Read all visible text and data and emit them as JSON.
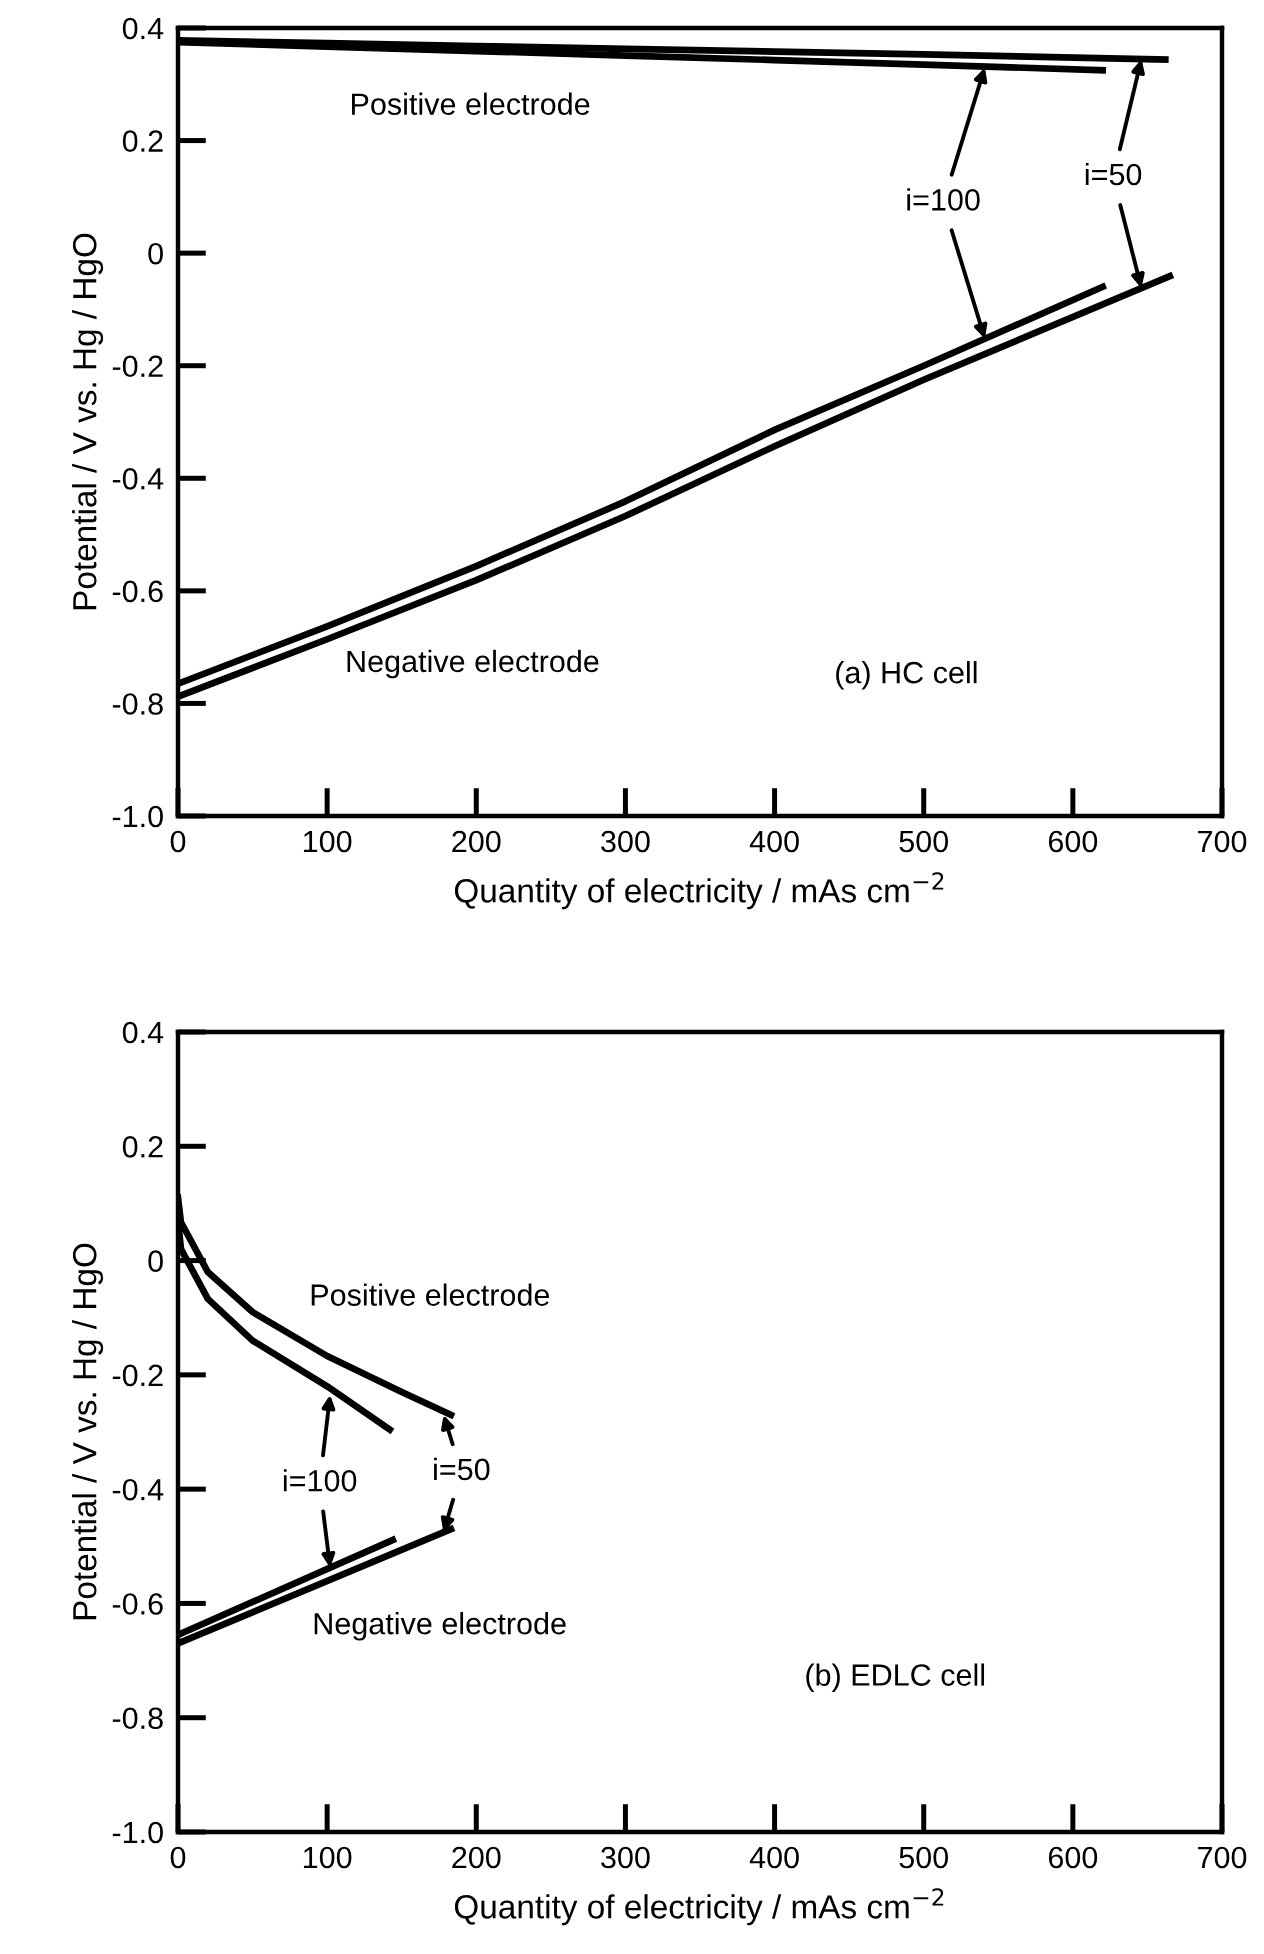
{
  "chart_data": [
    {
      "type": "line",
      "xlabel": "Quantity of electricity / mAs cm$^{−2}$",
      "ylabel": "Potential / V vs. Hg / HgO",
      "xlim": [
        0,
        700
      ],
      "xticks": [
        0,
        100,
        200,
        300,
        400,
        500,
        600,
        700
      ],
      "ylim": [
        -1.0,
        0.4
      ],
      "yticks": [
        {
          "value": -1.0,
          "label": "-1.0"
        },
        {
          "value": -0.8,
          "label": "-0.8"
        },
        {
          "value": -0.6,
          "label": "-0.6"
        },
        {
          "value": -0.4,
          "label": "-0.4"
        },
        {
          "value": -0.2,
          "label": "-0.2"
        },
        0,
        0.2,
        0.4
      ],
      "grid": false,
      "legend": false,
      "marker": "none",
      "line_style": "solid",
      "annotations": [
        "Positive electrode",
        "Negative electrode",
        "(a) HC cell",
        {
          "text": "i=100",
          "x": 541,
          "y": 0.33
        },
        {
          "text": "i=50",
          "x": 646,
          "y": 0.345
        }
      ],
      "series": [
        {
          "color": "#000000",
          "x": [
            0,
            100,
            200,
            300,
            400,
            500,
            620
          ],
          "values": [
            0.375,
            0.367,
            0.359,
            0.351,
            0.343,
            0.335,
            0.325
          ]
        },
        {
          "color": "#000000",
          "x": [
            0,
            100,
            200,
            300,
            400,
            500,
            662
          ],
          "values": [
            0.378,
            0.373,
            0.368,
            0.363,
            0.358,
            0.353,
            0.344
          ]
        },
        {
          "color": "#000000",
          "x": [
            0,
            100,
            200,
            300,
            400,
            500,
            620
          ],
          "values": [
            -0.765,
            -0.663,
            -0.556,
            -0.441,
            -0.314,
            -0.2,
            -0.06
          ]
        },
        {
          "color": "#000000",
          "x": [
            0,
            100,
            200,
            300,
            400,
            500,
            665
          ],
          "values": [
            -0.788,
            -0.686,
            -0.581,
            -0.467,
            -0.343,
            -0.225,
            -0.041
          ]
        }
      ]
    },
    {
      "type": "line",
      "xlabel": "Quantity of electricity / mAs cm$^{−2}$",
      "ylabel": "Potential / V vs. Hg / HgO",
      "xlim": [
        0,
        700
      ],
      "xticks": [
        0,
        100,
        200,
        300,
        400,
        500,
        600,
        700
      ],
      "ylim": [
        -1.0,
        0.4
      ],
      "yticks": [
        {
          "value": -1.0,
          "label": "-1.0"
        },
        {
          "value": -0.8,
          "label": "-0.8"
        },
        {
          "value": -0.6,
          "label": "-0.6"
        },
        {
          "value": -0.4,
          "label": "-0.4"
        },
        {
          "value": -0.2,
          "label": "-0.2"
        },
        0,
        0.2,
        0.4
      ],
      "grid": false,
      "legend": false,
      "marker": "none",
      "line_style": "solid",
      "annotations": [
        "Positive electrode",
        "Negative electrode",
        "(b) EDLC cell",
        {
          "text": "i=100",
          "x": 102,
          "y": -0.235
        },
        {
          "text": "i=50",
          "x": 178,
          "y": -0.27
        }
      ],
      "series": [
        {
          "color": "#000000",
          "x": [
            0,
            2,
            20,
            50,
            100,
            142
          ],
          "values": [
            0.07,
            0.02,
            -0.067,
            -0.14,
            -0.22,
            -0.296
          ]
        },
        {
          "color": "#000000",
          "x": [
            0,
            2,
            20,
            50,
            100,
            150,
            183
          ],
          "values": [
            0.11,
            0.067,
            -0.02,
            -0.09,
            -0.167,
            -0.23,
            -0.27
          ]
        },
        {
          "color": "#000000",
          "x": [
            0,
            144
          ],
          "values": [
            -0.655,
            -0.489
          ]
        },
        {
          "color": "#000000",
          "x": [
            0,
            183
          ],
          "values": [
            -0.67,
            -0.47
          ]
        }
      ]
    }
  ]
}
